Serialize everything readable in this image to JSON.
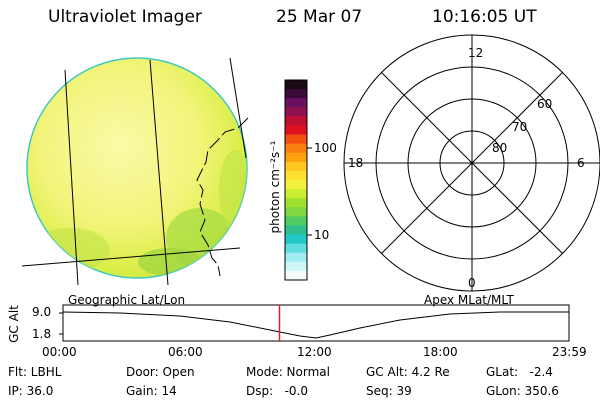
{
  "header": {
    "instrument": "Ultraviolet Imager",
    "date": "25 Mar 07",
    "time": "10:16:05 UT"
  },
  "colorbar": {
    "unit_label": "photon cm⁻²s⁻¹",
    "tick_labels": [
      "100",
      "10"
    ],
    "colors": [
      "#1a0a14",
      "#3a0a3a",
      "#6a1060",
      "#901050",
      "#c01030",
      "#e01020",
      "#f05010",
      "#f88010",
      "#ffa010",
      "#ffc820",
      "#ffe030",
      "#f4f040",
      "#ccee30",
      "#a0e030",
      "#80d840",
      "#50cc60",
      "#30c090",
      "#20c8c8",
      "#60dde0",
      "#a0ecf0",
      "#d0f6f8",
      "#f4fcfc"
    ]
  },
  "polar": {
    "labels": {
      "top": "12",
      "left": "18",
      "right": "6",
      "bottom": "0",
      "r60": "60",
      "r70": "70",
      "r80": "80"
    }
  },
  "timeline": {
    "left_label": "Geographic Lat/Lon",
    "right_label": "Apex MLat/MLT",
    "y_axis_label": "GC Alt",
    "y_ticks": [
      "9.0",
      "1.8"
    ],
    "x_ticks": [
      "00:00",
      "06:00",
      "12:00",
      "18:00",
      "23:59"
    ],
    "current_time_hours": 10.27,
    "marker_color": "#e02020"
  },
  "status": {
    "row1": [
      "Flt: LBHL",
      "Door: Open",
      "Mode: Normal",
      "GC Alt: 4.2 Re",
      "GLat:   -2.4"
    ],
    "row2": [
      "IP: 36.0",
      "Gain: 14",
      "Dsp:   -0.0",
      "Seq: 39",
      "GLon: 350.6"
    ]
  }
}
